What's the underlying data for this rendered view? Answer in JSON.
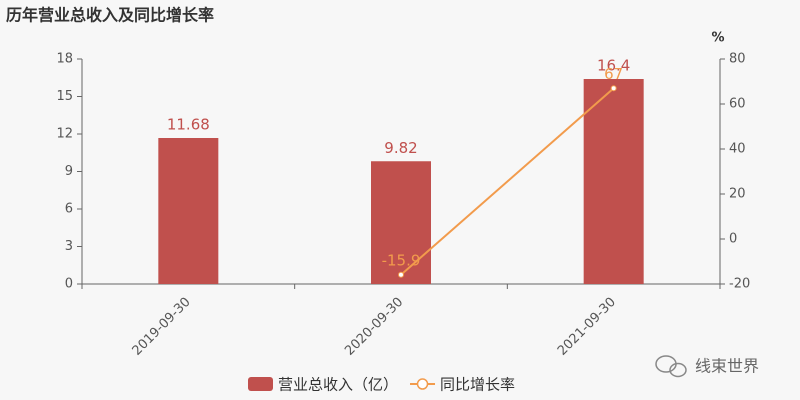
{
  "chart_data": {
    "type": "bar",
    "title": "历年营业总收入及同比增长率",
    "categories": [
      "2019-09-30",
      "2020-09-30",
      "2021-09-30"
    ],
    "series": [
      {
        "name": "营业总收入（亿）",
        "type": "bar",
        "color": "#c0504d",
        "values": [
          11.68,
          9.82,
          16.4
        ]
      },
      {
        "name": "同比增长率",
        "type": "line",
        "axis": "y2",
        "color": "#f29b4c",
        "values": [
          null,
          -15.9,
          67
        ]
      }
    ],
    "ylim": [
      0,
      18
    ],
    "yticks": [
      0,
      3,
      6,
      9,
      12,
      15,
      18
    ],
    "y2lim": [
      -20,
      80
    ],
    "y2ticks": [
      -20,
      0,
      20,
      40,
      60,
      80
    ],
    "y2label": "%",
    "watermark": "线束世界"
  }
}
